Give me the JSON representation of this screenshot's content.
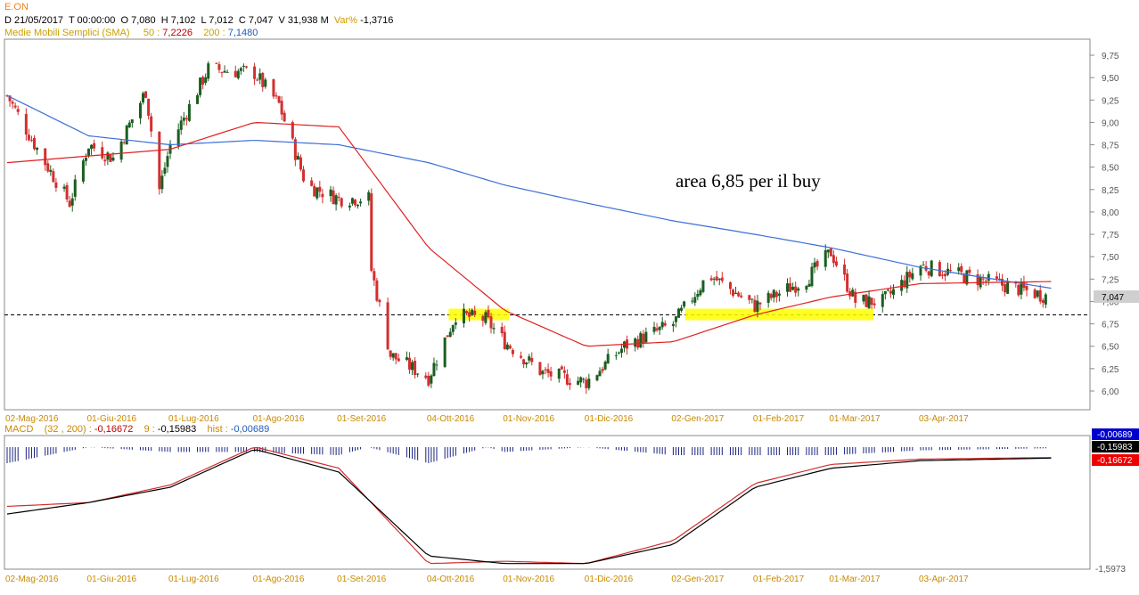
{
  "header": {
    "symbol": "E.ON",
    "date": "D 21/05/2017",
    "time": "T 00:00:00",
    "open": "O 7,080",
    "high": "H 7,102",
    "low": "L 7,012",
    "close": "C 7,047",
    "volume": "V 31,938 M",
    "var_label": "Var%",
    "var_value": "-1,3716",
    "sma_title": "Medie Mobili Semplici (SMA)",
    "sma50_label": "50 :",
    "sma50_value": "7,2226",
    "sma200_label": "200 :",
    "sma200_value": "7,1480"
  },
  "macd_header": {
    "title": "MACD",
    "params": "(32 , 200) :",
    "macd_value": "-0,16672",
    "signal_label": "9 :",
    "signal_value": "-0,15983",
    "hist_label": "hist :",
    "hist_value": "-0,00689"
  },
  "annotation": "area 6,85 per il buy",
  "last_price_label": "7,047",
  "macd_badges": [
    "-0,00689",
    "-0,15983",
    "-0,16672"
  ],
  "macd_min_label": "-1,5973",
  "colors": {
    "sma50": "#e02020",
    "sma200": "#3b6fd8",
    "up_candle": "#1b5e20",
    "down_candle": "#d32f2f",
    "macd_line": "#000000",
    "signal_line": "#d32f2f",
    "histogram": "#1a237e",
    "highlight": "#ffff00",
    "date_axis": "#c88a00"
  },
  "chart_data": [
    {
      "type": "candlestick",
      "title": "E.ON",
      "ylim": [
        5.85,
        9.9
      ],
      "y_ticks": [
        "9,75",
        "9,50",
        "9,25",
        "9,00",
        "8,75",
        "8,50",
        "8,25",
        "8,00",
        "7,75",
        "7,50",
        "7,25",
        "7,00",
        "6,75",
        "6,50",
        "6,25",
        "6,00"
      ],
      "x_ticks": [
        "02-Mag-2016",
        "01-Giu-2016",
        "01-Lug-2016",
        "01-Ago-2016",
        "01-Set-2016",
        "04-Ott-2016",
        "01-Nov-2016",
        "01-Dic-2016",
        "02-Gen-2017",
        "01-Feb-2017",
        "01-Mar-2017",
        "03-Apr-2017"
      ],
      "support_level": 6.85,
      "close_path": [
        [
          "02-Mag-2016",
          9.3
        ],
        [
          "15-Mag-2016",
          8.6
        ],
        [
          "25-Mag-2016",
          8.1
        ],
        [
          "01-Giu-2016",
          8.75
        ],
        [
          "10-Giu-2016",
          8.6
        ],
        [
          "22-Giu-2016",
          9.35
        ],
        [
          "27-Giu-2016",
          8.25
        ],
        [
          "01-Lug-2016",
          8.75
        ],
        [
          "15-Lug-2016",
          9.6
        ],
        [
          "01-Ago-2016",
          9.55
        ],
        [
          "10-Ago-2016",
          9.2
        ],
        [
          "20-Ago-2016",
          8.3
        ],
        [
          "01-Set-2016",
          8.15
        ],
        [
          "12-Set-2016",
          8.15
        ],
        [
          "13-Set-2016",
          7.35
        ],
        [
          "20-Set-2016",
          6.4
        ],
        [
          "04-Ott-2016",
          6.15
        ],
        [
          "14-Ott-2016",
          6.85
        ],
        [
          "25-Ott-2016",
          6.8
        ],
        [
          "01-Nov-2016",
          6.55
        ],
        [
          "15-Nov-2016",
          6.2
        ],
        [
          "01-Dic-2016",
          6.1
        ],
        [
          "15-Dic-2016",
          6.5
        ],
        [
          "02-Gen-2017",
          6.75
        ],
        [
          "15-Gen-2017",
          7.3
        ],
        [
          "01-Feb-2017",
          6.95
        ],
        [
          "20-Feb-2017",
          7.25
        ],
        [
          "01-Mar-2017",
          7.55
        ],
        [
          "10-Mar-2017",
          7.0
        ],
        [
          "20-Mar-2017",
          7.0
        ],
        [
          "03-Apr-2017",
          7.4
        ],
        [
          "01-Mag-2017",
          7.2
        ],
        [
          "21-Mag-2017",
          7.047
        ]
      ],
      "sma50": [
        [
          "02-Mag-2016",
          8.55
        ],
        [
          "01-Lug-2016",
          8.7
        ],
        [
          "01-Ago-2016",
          9.0
        ],
        [
          "01-Set-2016",
          8.95
        ],
        [
          "04-Ott-2016",
          7.6
        ],
        [
          "01-Nov-2016",
          6.9
        ],
        [
          "01-Dic-2016",
          6.5
        ],
        [
          "02-Gen-2017",
          6.55
        ],
        [
          "01-Feb-2017",
          6.85
        ],
        [
          "01-Mar-2017",
          7.05
        ],
        [
          "03-Apr-2017",
          7.2
        ],
        [
          "21-Mag-2017",
          7.2226
        ]
      ],
      "sma200": [
        [
          "02-Mag-2016",
          9.3
        ],
        [
          "01-Giu-2016",
          8.85
        ],
        [
          "01-Lug-2016",
          8.75
        ],
        [
          "01-Ago-2016",
          8.8
        ],
        [
          "01-Set-2016",
          8.75
        ],
        [
          "04-Ott-2016",
          8.55
        ],
        [
          "01-Nov-2016",
          8.3
        ],
        [
          "01-Dic-2016",
          8.1
        ],
        [
          "02-Gen-2017",
          7.9
        ],
        [
          "01-Feb-2017",
          7.75
        ],
        [
          "01-Mar-2017",
          7.6
        ],
        [
          "03-Apr-2017",
          7.38
        ],
        [
          "21-Mag-2017",
          7.148
        ]
      ]
    },
    {
      "type": "line",
      "title": "MACD",
      "series": [
        {
          "name": "MACD",
          "values": [
            [
              "02-Mag-2016",
              -0.9
            ],
            [
              "01-Giu-2016",
              -0.75
            ],
            [
              "01-Lug-2016",
              -0.55
            ],
            [
              "01-Ago-2016",
              -0.05
            ],
            [
              "01-Set-2016",
              -0.35
            ],
            [
              "04-Ott-2016",
              -1.45
            ],
            [
              "01-Nov-2016",
              -1.55
            ],
            [
              "01-Dic-2016",
              -1.55
            ],
            [
              "02-Gen-2017",
              -1.3
            ],
            [
              "01-Feb-2017",
              -0.55
            ],
            [
              "01-Mar-2017",
              -0.3
            ],
            [
              "03-Apr-2017",
              -0.2
            ],
            [
              "21-Mag-2017",
              -0.16672
            ]
          ]
        },
        {
          "name": "9",
          "values": [
            [
              "02-Mag-2016",
              -0.8
            ],
            [
              "01-Giu-2016",
              -0.75
            ],
            [
              "01-Lug-2016",
              -0.52
            ],
            [
              "01-Ago-2016",
              -0.02
            ],
            [
              "01-Set-2016",
              -0.3
            ],
            [
              "04-Ott-2016",
              -1.55
            ],
            [
              "01-Nov-2016",
              -1.52
            ],
            [
              "01-Dic-2016",
              -1.55
            ],
            [
              "02-Gen-2017",
              -1.25
            ],
            [
              "01-Feb-2017",
              -0.5
            ],
            [
              "01-Mar-2017",
              -0.25
            ],
            [
              "03-Apr-2017",
              -0.18
            ],
            [
              "21-Mag-2017",
              -0.15983
            ]
          ]
        }
      ]
    }
  ]
}
